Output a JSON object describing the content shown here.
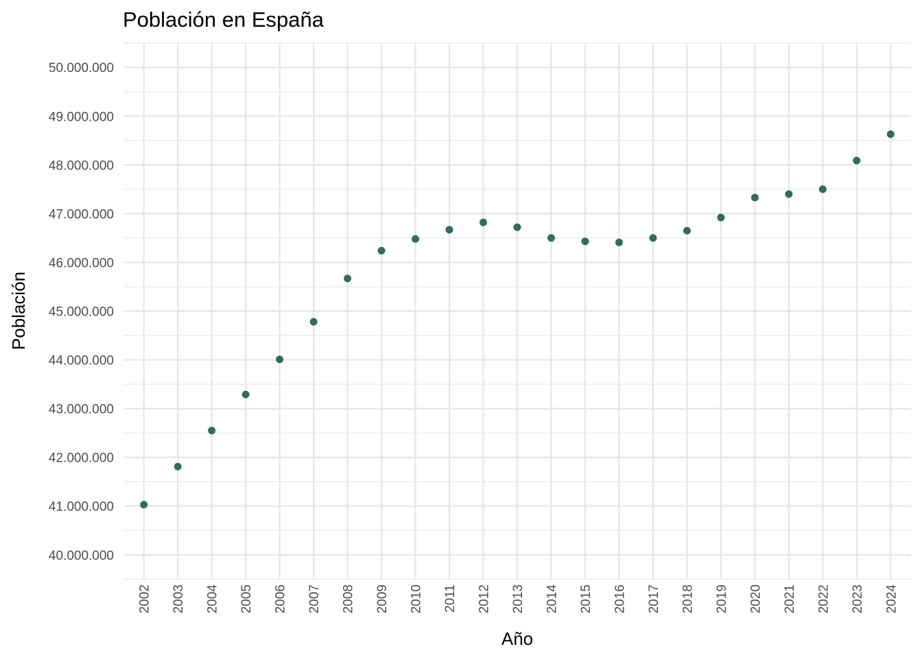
{
  "chart_data": {
    "type": "scatter",
    "title": "Población en España",
    "xlabel": "Año",
    "ylabel": "Población",
    "x": [
      2002,
      2003,
      2004,
      2005,
      2006,
      2007,
      2008,
      2009,
      2010,
      2011,
      2012,
      2013,
      2014,
      2015,
      2016,
      2017,
      2018,
      2019,
      2020,
      2021,
      2022,
      2023,
      2024
    ],
    "y": [
      41030000,
      41810000,
      42550000,
      43290000,
      44010000,
      44780000,
      45670000,
      46240000,
      46480000,
      46670000,
      46820000,
      46720000,
      46500000,
      46430000,
      46410000,
      46500000,
      46650000,
      46920000,
      47330000,
      47400000,
      47500000,
      48090000,
      48630000
    ],
    "xticks": [
      "2002",
      "2003",
      "2004",
      "2005",
      "2006",
      "2007",
      "2008",
      "2009",
      "2010",
      "2011",
      "2012",
      "2013",
      "2014",
      "2015",
      "2016",
      "2017",
      "2018",
      "2019",
      "2020",
      "2021",
      "2022",
      "2023",
      "2024"
    ],
    "yticks": [
      40000000,
      41000000,
      42000000,
      43000000,
      44000000,
      45000000,
      46000000,
      47000000,
      48000000,
      49000000,
      50000000
    ],
    "ytick_labels": [
      "40.000.000",
      "41.000.000",
      "42.000.000",
      "43.000.000",
      "44.000.000",
      "45.000.000",
      "46.000.000",
      "47.000.000",
      "48.000.000",
      "49.000.000",
      "50.000.000"
    ],
    "xlim": [
      2001.4,
      2024.6
    ],
    "ylim": [
      39490000,
      50510000
    ],
    "grid": true,
    "point_color": "#336b5e",
    "grid_color": "#e6e6e6"
  }
}
